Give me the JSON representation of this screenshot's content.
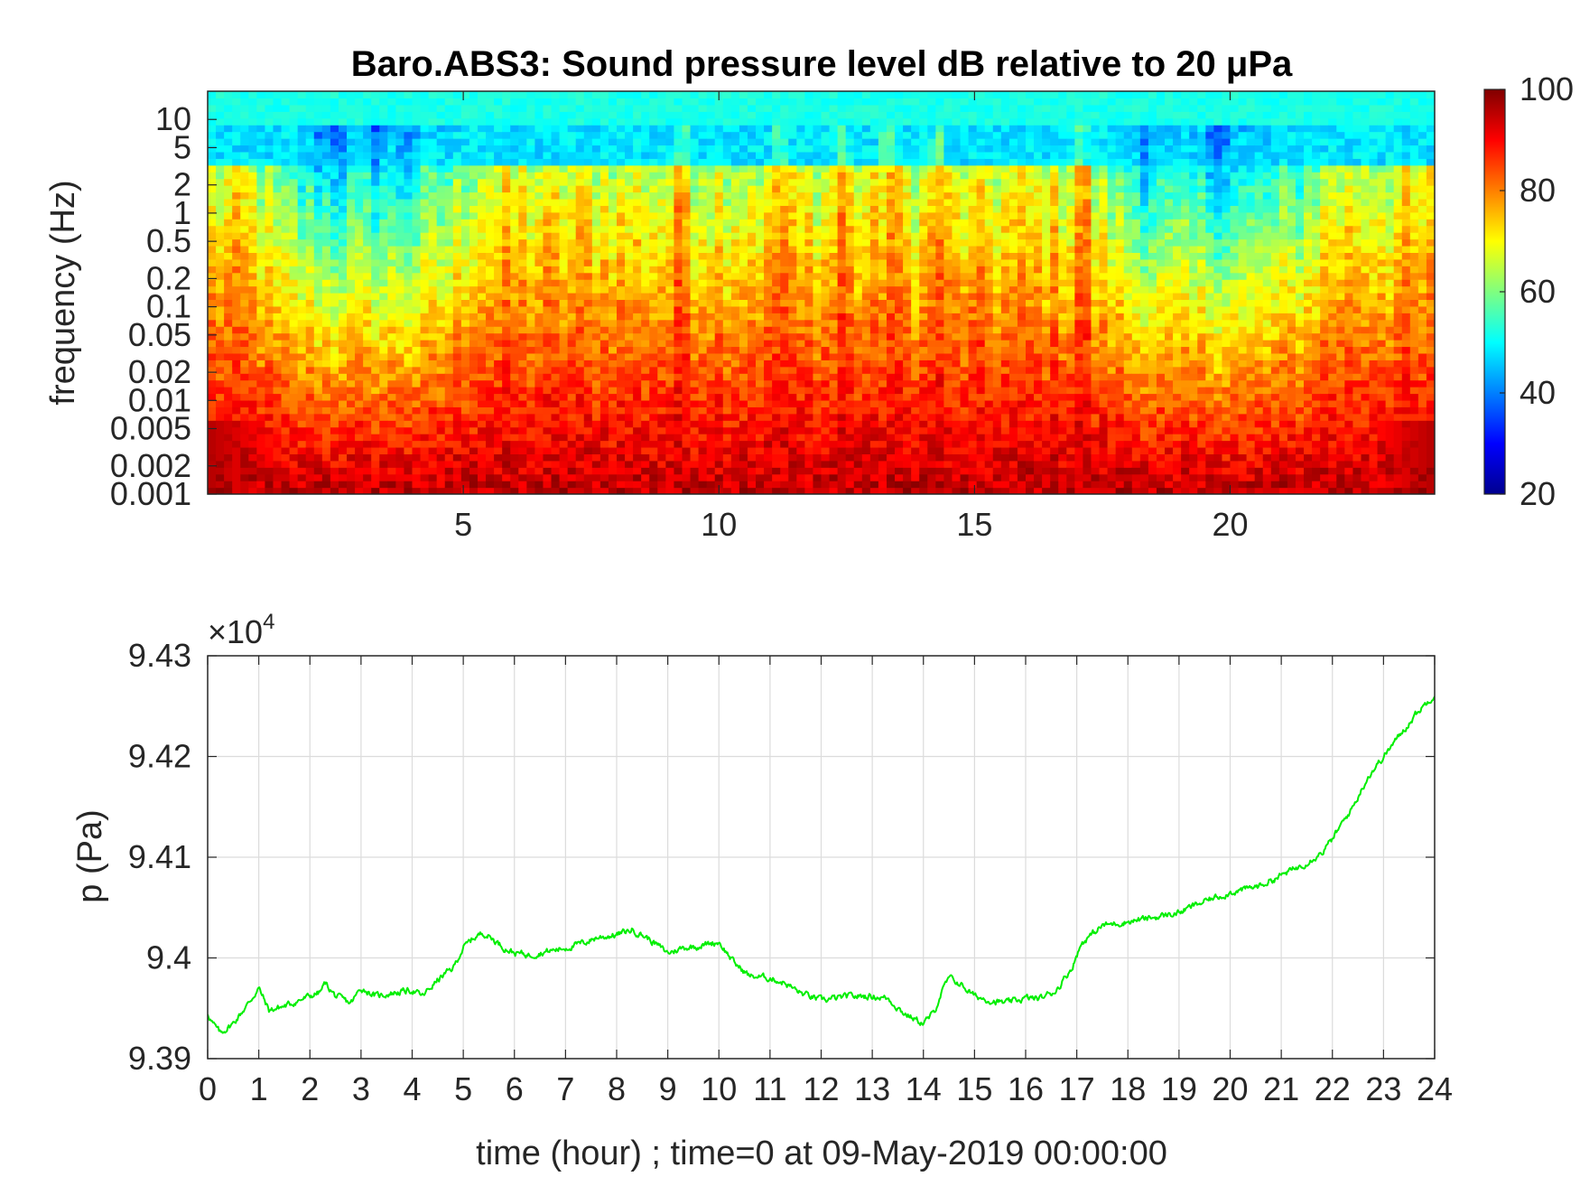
{
  "chart_data": [
    {
      "type": "heatmap",
      "title": "Baro.ABS3: Sound pressure level dB relative to 20 μPa",
      "xlabel": "",
      "ylabel": "frequency (Hz)",
      "xlim": [
        0,
        24
      ],
      "x_ticks": [
        5,
        10,
        15,
        20
      ],
      "y_scale": "log",
      "ylim": [
        0.001,
        20
      ],
      "y_ticks": [
        0.001,
        0.002,
        0.005,
        0.01,
        0.02,
        0.05,
        0.1,
        0.2,
        0.5,
        1,
        2,
        5,
        10
      ],
      "y_tick_labels": [
        "0.001",
        "0.002",
        "0.005",
        "0.01",
        "0.02",
        "0.05",
        "0.1",
        "0.2",
        "0.5",
        "1",
        "2",
        "5",
        "10"
      ],
      "colorbar": {
        "colormap": "jet",
        "range": [
          20,
          100
        ],
        "ticks": [
          20,
          40,
          60,
          80,
          100
        ]
      },
      "low_band_hours": [
        [
          0.8,
          5.3
        ],
        [
          17.2,
          22.0
        ]
      ],
      "peak_hours": [
        14.3,
        17.1,
        13.3,
        11.2,
        9.3,
        12.4
      ]
    },
    {
      "type": "line",
      "title": "",
      "xlabel": "time (hour) ; time=0 at 09-May-2019 00:00:00",
      "ylabel": "p (Pa)",
      "y_exponent_label": "×10",
      "y_exponent_power": "4",
      "xlim": [
        0,
        24
      ],
      "ylim": [
        93900,
        94300
      ],
      "x_ticks": [
        0,
        1,
        2,
        3,
        4,
        5,
        6,
        7,
        8,
        9,
        10,
        11,
        12,
        13,
        14,
        15,
        16,
        17,
        18,
        19,
        20,
        21,
        22,
        23,
        24
      ],
      "y_ticks": [
        93900,
        94000,
        94100,
        94200,
        94300
      ],
      "y_tick_labels": [
        "9.39",
        "9.4",
        "9.41",
        "9.42",
        "9.43"
      ],
      "grid": true,
      "line_color": "#00ee00",
      "series": [
        {
          "x": [
            0,
            0.1,
            0.25,
            0.5,
            0.8,
            1.0,
            1.2,
            1.5,
            1.8,
            2.0,
            2.2,
            2.3,
            2.5,
            2.8,
            3.0,
            3.3,
            3.6,
            4.0,
            4.2,
            4.5,
            4.8,
            5.0,
            5.2,
            5.4,
            5.6,
            5.8,
            6.0,
            6.3,
            6.6,
            7.0,
            7.3,
            7.6,
            8.0,
            8.3,
            8.6,
            9.0,
            9.3,
            9.6,
            10.0,
            10.3,
            10.6,
            11.0,
            11.3,
            11.6,
            12.0,
            12.3,
            12.6,
            13.0,
            13.3,
            13.6,
            13.8,
            14.0,
            14.2,
            14.35,
            14.5,
            14.7,
            15.0,
            15.3,
            15.6,
            16.0,
            16.3,
            16.6,
            16.9,
            17.1,
            17.5,
            18.0,
            18.5,
            19.0,
            19.3,
            19.6,
            20.0,
            20.3,
            20.6,
            21.0,
            21.4,
            21.8,
            22.0,
            22.4,
            22.7,
            23.0,
            23.3,
            23.6,
            24.0
          ],
          "values": [
            93945,
            93935,
            93925,
            93935,
            93955,
            93970,
            93948,
            93952,
            93958,
            93962,
            93966,
            93975,
            93962,
            93955,
            93970,
            93962,
            93965,
            93968,
            93962,
            93978,
            93990,
            94010,
            94020,
            94025,
            94018,
            94010,
            94005,
            94003,
            94006,
            94010,
            94014,
            94020,
            94023,
            94028,
            94020,
            94005,
            94010,
            94012,
            94016,
            93995,
            93982,
            93980,
            93975,
            93965,
            93958,
            93960,
            93962,
            93962,
            93960,
            93946,
            93940,
            93935,
            93945,
            93965,
            93980,
            93975,
            93962,
            93958,
            93955,
            93960,
            93960,
            93968,
            93990,
            94015,
            94032,
            94036,
            94040,
            94045,
            94052,
            94058,
            94065,
            94068,
            94072,
            94082,
            94092,
            94105,
            94118,
            94150,
            94180,
            94200,
            94220,
            94240,
            94262
          ]
        }
      ]
    }
  ]
}
